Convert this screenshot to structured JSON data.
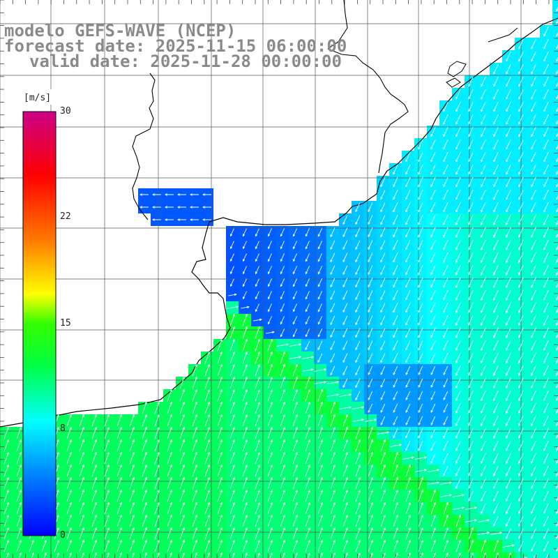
{
  "title": {
    "model": "modelo GEFS-WAVE (NCEP)",
    "forecast": "forecast date: 2025-11-15 06:00:00",
    "valid": "valid date: 2025-11-28 00:00:00"
  },
  "colorbar": {
    "unit": "[m/s]",
    "ticks": [
      "30",
      "22",
      "15",
      "8",
      "0"
    ],
    "tick_values": [
      30,
      22,
      15,
      8,
      0
    ],
    "range": [
      0,
      30
    ],
    "colors": [
      "#0000ff",
      "#00aaff",
      "#00ffff",
      "#00ff00",
      "#ffff00",
      "#ff6600",
      "#ff0000",
      "#cc0099"
    ]
  },
  "colors": {
    "title": "#8a8a8a",
    "land": "#ffffff",
    "coastline": "#000000",
    "grid": "#444444",
    "arrows": "#ffffff"
  },
  "map": {
    "variable": "wind speed",
    "arrow_direction_note": "north-east in south-west region, south-west in north-east region"
  }
}
